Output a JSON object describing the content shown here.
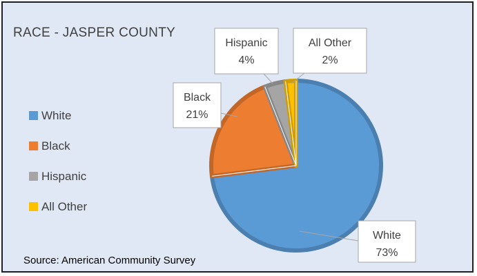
{
  "chart_data": {
    "type": "pie",
    "title": "RACE - JASPER COUNTY",
    "categories": [
      "White",
      "Black",
      "Hispanic",
      "All Other"
    ],
    "values": [
      73,
      21,
      4,
      2
    ],
    "value_labels": [
      "73%",
      "21%",
      "4%",
      "2%"
    ],
    "colors": [
      "#5b9bd5",
      "#ed7d31",
      "#a5a5a5",
      "#ffc000"
    ],
    "legend_position": "left",
    "source": "Source: American Community Survey"
  }
}
